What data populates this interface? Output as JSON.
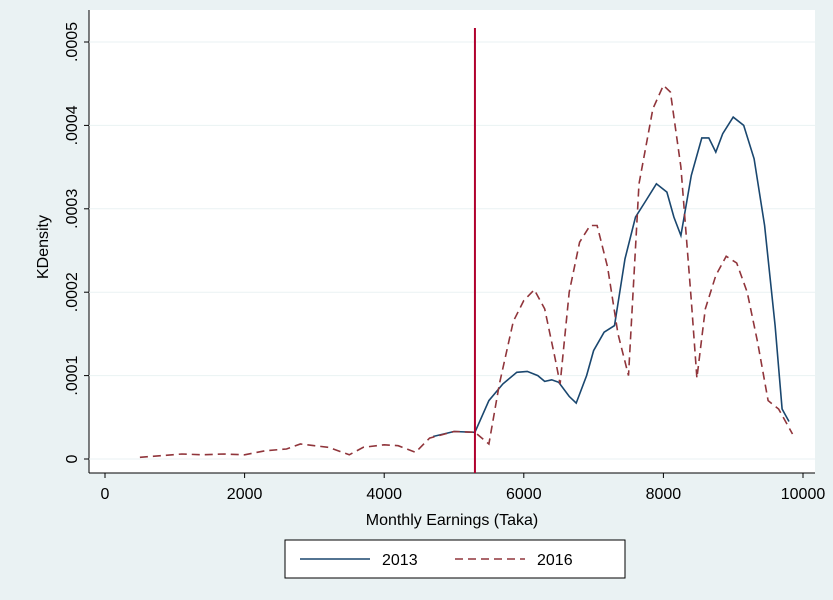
{
  "chart_data": {
    "type": "line",
    "xlabel": "Monthly Earnings (Taka)",
    "ylabel": "KDensity",
    "xlim": [
      -200,
      10200
    ],
    "ylim": [
      0,
      0.0005
    ],
    "xticks": [
      0,
      2000,
      4000,
      6000,
      8000,
      10000
    ],
    "yticks": [
      0,
      {
        "value": 0.0001,
        "label": ".0001"
      },
      {
        "value": 0.0002,
        "label": ".0002"
      },
      {
        "value": 0.0003,
        "label": ".0003"
      },
      {
        "value": 0.0004,
        "label": ".0004"
      },
      {
        "value": 0.0005,
        "label": ".0005"
      }
    ],
    "vline": 5300,
    "vline_color": "#b0002e",
    "grid": true,
    "series": [
      {
        "name": "2013",
        "color": "#1a476f",
        "dash": false,
        "x": [
          4700,
          5000,
          5300,
          5500,
          5700,
          5900,
          6050,
          6200,
          6300,
          6400,
          6500,
          6650,
          6750,
          6900,
          7000,
          7150,
          7300,
          7450,
          7600,
          7750,
          7900,
          8050,
          8150,
          8250,
          8400,
          8550,
          8650,
          8750,
          8850,
          9000,
          9150,
          9300,
          9450,
          9600,
          9700,
          9800
        ],
        "values": [
          2.7e-05,
          3.3e-05,
          3.2e-05,
          7e-05,
          9e-05,
          0.000104,
          0.000105,
          0.0001,
          9.3e-05,
          9.5e-05,
          9.2e-05,
          7.5e-05,
          6.7e-05,
          0.0001,
          0.00013,
          0.000152,
          0.00016,
          0.00024,
          0.00029,
          0.00031,
          0.00033,
          0.00032,
          0.00029,
          0.000268,
          0.00034,
          0.000385,
          0.000385,
          0.000368,
          0.00039,
          0.00041,
          0.0004,
          0.00036,
          0.00028,
          0.00016,
          6e-05,
          4.5e-05
        ]
      },
      {
        "name": "2016",
        "color": "#90353b",
        "dash": true,
        "x": [
          500,
          800,
          1100,
          1400,
          1700,
          2000,
          2300,
          2600,
          2800,
          3000,
          3200,
          3500,
          3700,
          4000,
          4200,
          4450,
          4650,
          5000,
          5300,
          5500,
          5650,
          5850,
          6000,
          6150,
          6300,
          6450,
          6520,
          6650,
          6800,
          6950,
          7050,
          7200,
          7350,
          7500,
          7650,
          7850,
          8000,
          8100,
          8250,
          8400,
          8480,
          8600,
          8750,
          8900,
          9050,
          9200,
          9350,
          9500,
          9650,
          9850
        ],
        "values": [
          2e-06,
          4e-06,
          6e-06,
          5e-06,
          6e-06,
          5e-06,
          1e-05,
          1.2e-05,
          1.8e-05,
          1.6e-05,
          1.4e-05,
          5e-06,
          1.4e-05,
          1.7e-05,
          1.6e-05,
          8e-06,
          2.5e-05,
          3.3e-05,
          3.2e-05,
          1.8e-05,
          9e-05,
          0.000165,
          0.00019,
          0.000203,
          0.00018,
          0.00012,
          9e-05,
          0.0002,
          0.00026,
          0.00028,
          0.00028,
          0.00023,
          0.00015,
          0.0001,
          0.00033,
          0.00042,
          0.000448,
          0.00044,
          0.00035,
          0.00019,
          9.7e-05,
          0.00018,
          0.00022,
          0.000243,
          0.000235,
          0.0002,
          0.00014,
          7e-05,
          6e-05,
          3e-05
        ]
      }
    ]
  }
}
